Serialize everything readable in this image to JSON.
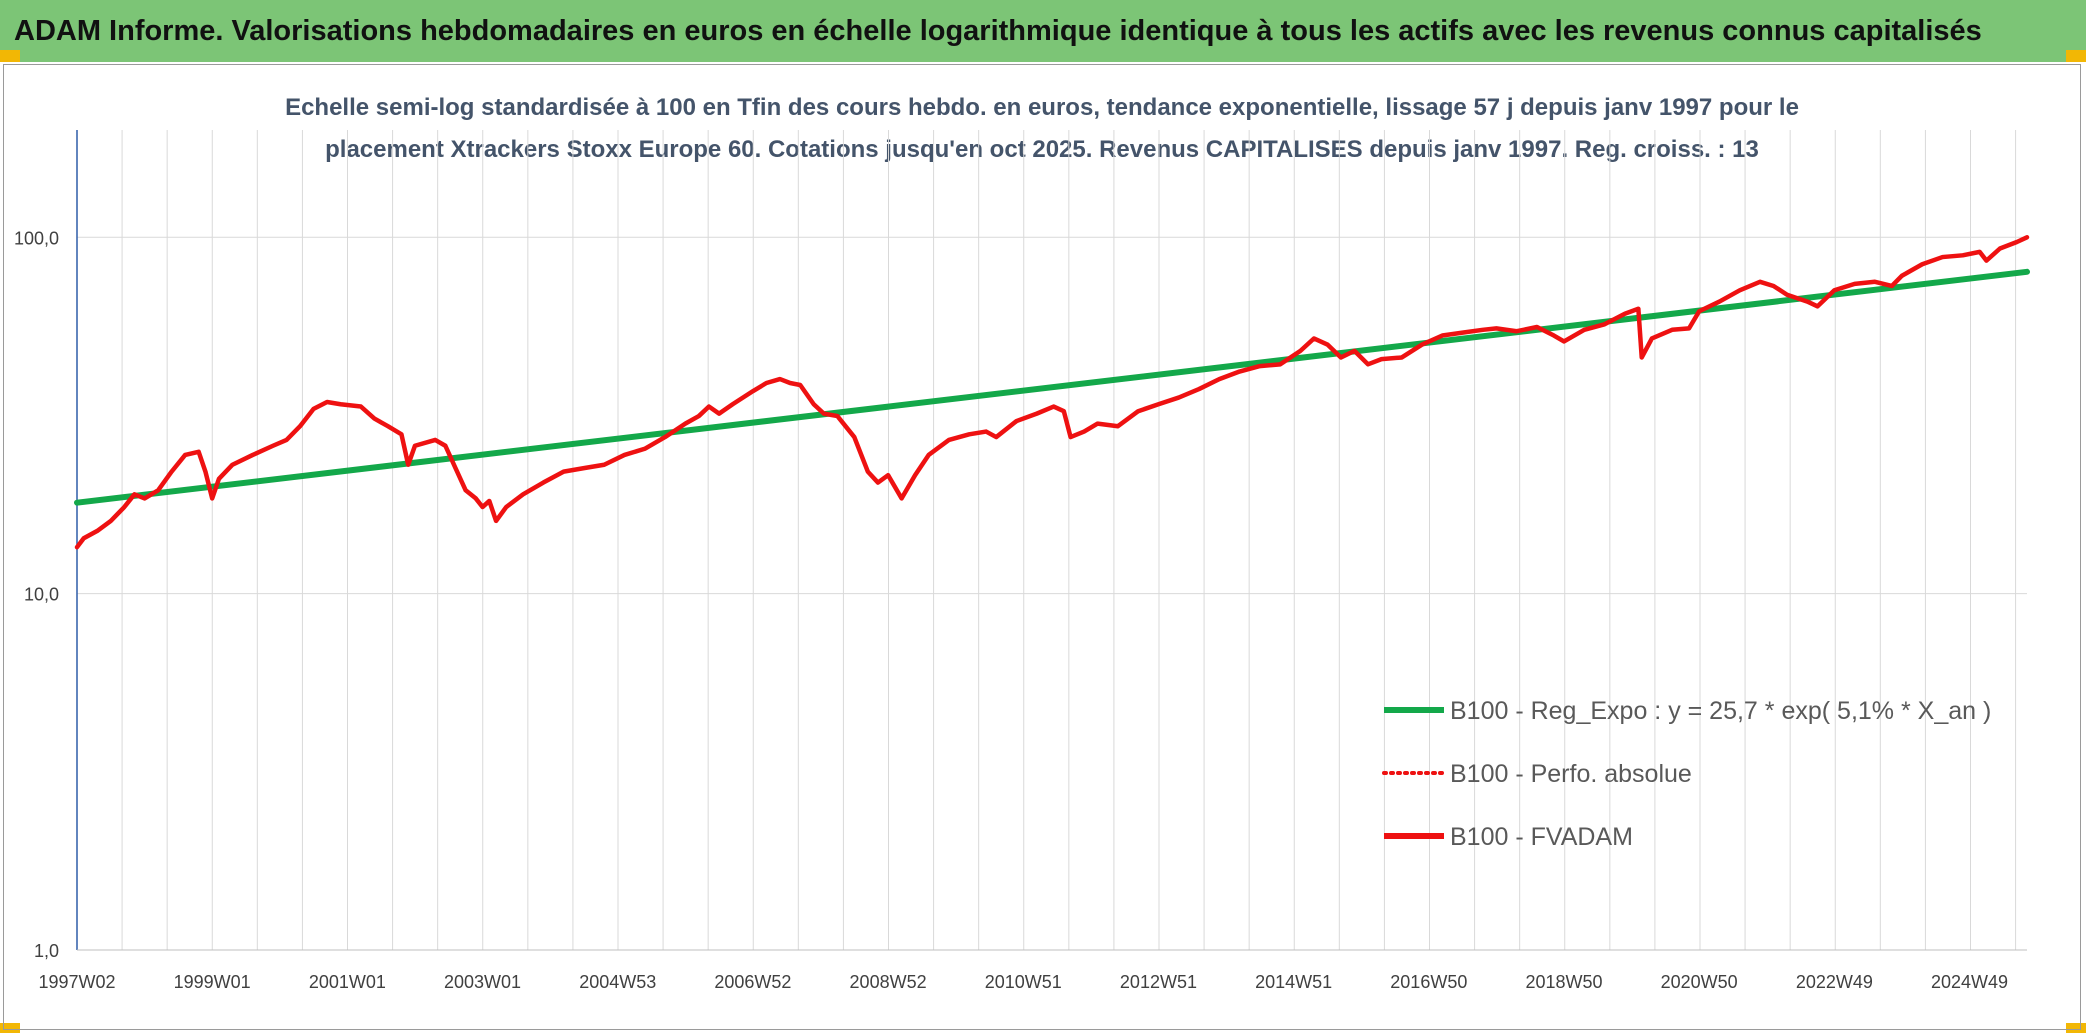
{
  "header": {
    "title": "ADAM Informe. Valorisations hebdomadaires en euros en échelle logarithmique identique à tous les actifs avec les revenus connus capitalisés"
  },
  "colors": {
    "header_bg": "#7cc576",
    "corner_marks": "#f2b705",
    "regression_line": "#13a84a",
    "price_line": "#ee1111",
    "grid": "#d9d9d9",
    "y_axis": "#2f5da8"
  },
  "chart_data": {
    "type": "line",
    "title_lines": [
      "Echelle semi-log standardisée à 100 en Tfin des cours hebdo. en euros, tendance exponentielle, lissage 57 j depuis janv 1997 pour le",
      "placement Xtrackers Stoxx Europe 60. Cotations jusqu'en oct 2025. Revenus CAPITALISES depuis janv 1997. Reg. croiss. : 13"
    ],
    "y_scale": "log",
    "ylim": [
      1,
      200
    ],
    "y_ticks": [
      {
        "value": 1,
        "label": "1,0"
      },
      {
        "value": 10,
        "label": "10,0"
      },
      {
        "value": 100,
        "label": "100,0"
      }
    ],
    "xlim": [
      1997.0,
      2025.85
    ],
    "x_ticks": [
      {
        "value": 1997.0,
        "label": "1997W02"
      },
      {
        "value": 1999.0,
        "label": "1999W01"
      },
      {
        "value": 2001.0,
        "label": "2001W01"
      },
      {
        "value": 2003.0,
        "label": "2003W01"
      },
      {
        "value": 2005.0,
        "label": "2004W53"
      },
      {
        "value": 2007.0,
        "label": "2006W52"
      },
      {
        "value": 2009.0,
        "label": "2008W52"
      },
      {
        "value": 2011.0,
        "label": "2010W51"
      },
      {
        "value": 2013.0,
        "label": "2012W51"
      },
      {
        "value": 2015.0,
        "label": "2014W51"
      },
      {
        "value": 2017.0,
        "label": "2016W50"
      },
      {
        "value": 2019.0,
        "label": "2018W50"
      },
      {
        "value": 2021.0,
        "label": "2020W50"
      },
      {
        "value": 2023.0,
        "label": "2022W49"
      },
      {
        "value": 2025.0,
        "label": "2024W49"
      }
    ],
    "grid": true,
    "legend_position": "bottom-right",
    "series": [
      {
        "name": "B100 - Reg_Expo : y = 25,7 * exp( 5,1% *  X_an )",
        "style": "solid",
        "color": "#13a84a",
        "points": [
          [
            1997.0,
            18.0
          ],
          [
            2025.85,
            80.0
          ]
        ]
      },
      {
        "name": "B100 - Perfo. absolue",
        "style": "dotted",
        "color": "#ee1111",
        "points": []
      },
      {
        "name": "B100 - FVADAM",
        "style": "solid",
        "color": "#ee1111",
        "points": [
          [
            1997.0,
            13.5
          ],
          [
            1997.1,
            14.3
          ],
          [
            1997.3,
            15.0
          ],
          [
            1997.5,
            16.0
          ],
          [
            1997.7,
            17.5
          ],
          [
            1997.85,
            19.0
          ],
          [
            1998.0,
            18.5
          ],
          [
            1998.2,
            19.5
          ],
          [
            1998.4,
            22.0
          ],
          [
            1998.6,
            24.5
          ],
          [
            1998.8,
            25.0
          ],
          [
            1998.9,
            22.0
          ],
          [
            1999.0,
            18.5
          ],
          [
            1999.1,
            21.0
          ],
          [
            1999.3,
            23.0
          ],
          [
            1999.6,
            24.5
          ],
          [
            1999.9,
            26.0
          ],
          [
            2000.1,
            27.0
          ],
          [
            2000.3,
            29.5
          ],
          [
            2000.5,
            33.0
          ],
          [
            2000.7,
            34.5
          ],
          [
            2000.9,
            34.0
          ],
          [
            2001.2,
            33.5
          ],
          [
            2001.4,
            31.0
          ],
          [
            2001.6,
            29.5
          ],
          [
            2001.8,
            28.0
          ],
          [
            2001.9,
            23.0
          ],
          [
            2002.0,
            26.0
          ],
          [
            2002.3,
            27.0
          ],
          [
            2002.45,
            26.0
          ],
          [
            2002.6,
            22.5
          ],
          [
            2002.75,
            19.5
          ],
          [
            2002.9,
            18.5
          ],
          [
            2003.0,
            17.5
          ],
          [
            2003.1,
            18.2
          ],
          [
            2003.2,
            16.0
          ],
          [
            2003.35,
            17.5
          ],
          [
            2003.6,
            19.0
          ],
          [
            2003.9,
            20.5
          ],
          [
            2004.2,
            22.0
          ],
          [
            2004.5,
            22.5
          ],
          [
            2004.8,
            23.0
          ],
          [
            2005.1,
            24.5
          ],
          [
            2005.4,
            25.5
          ],
          [
            2005.7,
            27.5
          ],
          [
            2006.0,
            30.0
          ],
          [
            2006.2,
            31.5
          ],
          [
            2006.35,
            33.5
          ],
          [
            2006.5,
            32.0
          ],
          [
            2006.7,
            34.0
          ],
          [
            2007.0,
            37.0
          ],
          [
            2007.2,
            39.0
          ],
          [
            2007.4,
            40.0
          ],
          [
            2007.55,
            39.0
          ],
          [
            2007.7,
            38.5
          ],
          [
            2007.9,
            34.0
          ],
          [
            2008.05,
            32.0
          ],
          [
            2008.25,
            31.5
          ],
          [
            2008.5,
            27.5
          ],
          [
            2008.7,
            22.0
          ],
          [
            2008.85,
            20.5
          ],
          [
            2009.0,
            21.5
          ],
          [
            2009.2,
            18.5
          ],
          [
            2009.4,
            21.5
          ],
          [
            2009.6,
            24.5
          ],
          [
            2009.9,
            27.0
          ],
          [
            2010.2,
            28.0
          ],
          [
            2010.45,
            28.5
          ],
          [
            2010.6,
            27.5
          ],
          [
            2010.9,
            30.5
          ],
          [
            2011.2,
            32.0
          ],
          [
            2011.45,
            33.5
          ],
          [
            2011.6,
            32.5
          ],
          [
            2011.7,
            27.5
          ],
          [
            2011.9,
            28.5
          ],
          [
            2012.1,
            30.0
          ],
          [
            2012.4,
            29.5
          ],
          [
            2012.7,
            32.5
          ],
          [
            2013.0,
            34.0
          ],
          [
            2013.3,
            35.5
          ],
          [
            2013.6,
            37.5
          ],
          [
            2013.9,
            40.0
          ],
          [
            2014.2,
            42.0
          ],
          [
            2014.5,
            43.5
          ],
          [
            2014.8,
            44.0
          ],
          [
            2015.1,
            48.0
          ],
          [
            2015.3,
            52.0
          ],
          [
            2015.5,
            50.0
          ],
          [
            2015.7,
            46.0
          ],
          [
            2015.9,
            48.0
          ],
          [
            2016.1,
            44.0
          ],
          [
            2016.3,
            45.5
          ],
          [
            2016.6,
            46.0
          ],
          [
            2016.9,
            50.0
          ],
          [
            2017.2,
            53.0
          ],
          [
            2017.5,
            54.0
          ],
          [
            2017.8,
            55.0
          ],
          [
            2018.0,
            55.5
          ],
          [
            2018.3,
            54.5
          ],
          [
            2018.6,
            56.0
          ],
          [
            2018.85,
            53.0
          ],
          [
            2019.0,
            51.0
          ],
          [
            2019.3,
            55.0
          ],
          [
            2019.6,
            57.0
          ],
          [
            2019.9,
            61.0
          ],
          [
            2020.1,
            63.0
          ],
          [
            2020.15,
            46.0
          ],
          [
            2020.3,
            52.0
          ],
          [
            2020.6,
            55.0
          ],
          [
            2020.85,
            55.5
          ],
          [
            2021.0,
            62.0
          ],
          [
            2021.3,
            66.0
          ],
          [
            2021.6,
            71.0
          ],
          [
            2021.9,
            75.0
          ],
          [
            2022.1,
            73.0
          ],
          [
            2022.3,
            69.0
          ],
          [
            2022.6,
            66.0
          ],
          [
            2022.75,
            64.0
          ],
          [
            2023.0,
            71.0
          ],
          [
            2023.3,
            74.0
          ],
          [
            2023.6,
            75.0
          ],
          [
            2023.85,
            73.0
          ],
          [
            2024.0,
            78.0
          ],
          [
            2024.3,
            84.0
          ],
          [
            2024.6,
            88.0
          ],
          [
            2024.9,
            89.0
          ],
          [
            2025.15,
            91.0
          ],
          [
            2025.25,
            86.0
          ],
          [
            2025.45,
            93.0
          ],
          [
            2025.7,
            97.0
          ],
          [
            2025.85,
            100.0
          ]
        ]
      }
    ]
  }
}
